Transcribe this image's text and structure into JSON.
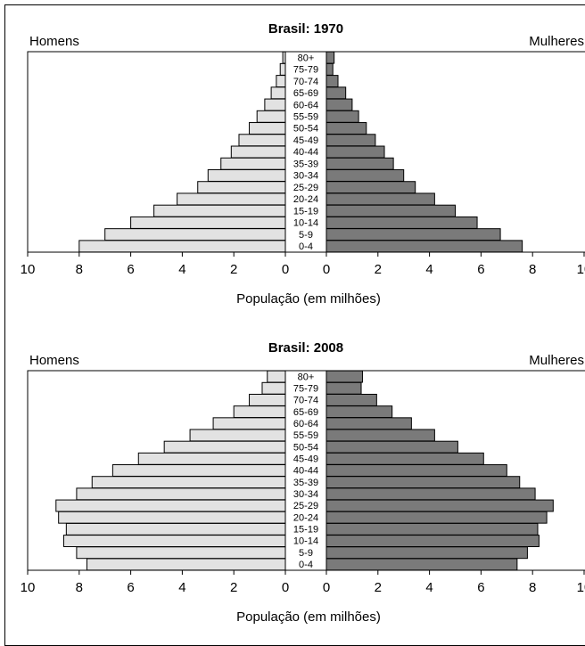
{
  "chart_data": [
    {
      "type": "bar",
      "title": "Brasil: 1970",
      "left_label": "Homens",
      "right_label": "Mulheres",
      "xlabel": "População (em milhões)",
      "categories": [
        "80+",
        "75-79",
        "70-74",
        "65-69",
        "60-64",
        "55-59",
        "50-54",
        "45-49",
        "40-44",
        "35-39",
        "30-34",
        "25-29",
        "20-24",
        "15-19",
        "10-14",
        "5-9",
        "0-4"
      ],
      "series": [
        {
          "name": "Homens",
          "values": [
            0.1,
            0.2,
            0.35,
            0.55,
            0.8,
            1.1,
            1.4,
            1.8,
            2.1,
            2.5,
            3.0,
            3.4,
            4.2,
            5.1,
            6.0,
            7.0,
            8.0
          ]
        },
        {
          "name": "Mulheres",
          "values": [
            0.3,
            0.25,
            0.45,
            0.75,
            1.0,
            1.25,
            1.55,
            1.9,
            2.25,
            2.6,
            3.0,
            3.45,
            4.2,
            5.0,
            5.85,
            6.75,
            7.6
          ]
        }
      ],
      "x_ticks": [
        "10",
        "8",
        "6",
        "4",
        "2",
        "0"
      ],
      "xlim": [
        0,
        10
      ]
    },
    {
      "type": "bar",
      "title": "Brasil: 2008",
      "left_label": "Homens",
      "right_label": "Mulheres",
      "xlabel": "População (em milhões)",
      "categories": [
        "80+",
        "75-79",
        "70-74",
        "65-69",
        "60-64",
        "55-59",
        "50-54",
        "45-49",
        "40-44",
        "35-39",
        "30-34",
        "25-29",
        "20-24",
        "15-19",
        "10-14",
        "5-9",
        "0-4"
      ],
      "series": [
        {
          "name": "Homens",
          "values": [
            0.7,
            0.9,
            1.4,
            2.0,
            2.8,
            3.7,
            4.7,
            5.7,
            6.7,
            7.5,
            8.1,
            8.9,
            8.8,
            8.5,
            8.6,
            8.1,
            7.7
          ]
        },
        {
          "name": "Mulheres",
          "values": [
            1.4,
            1.35,
            1.95,
            2.55,
            3.3,
            4.2,
            5.1,
            6.1,
            7.0,
            7.5,
            8.1,
            8.8,
            8.55,
            8.2,
            8.25,
            7.8,
            7.4
          ]
        }
      ],
      "x_ticks": [
        "10",
        "8",
        "6",
        "4",
        "2",
        "0"
      ],
      "xlim": [
        0,
        10
      ]
    }
  ],
  "colors": {
    "homens_fill": "#e2e2e2",
    "mulheres_fill": "#7a7a7a",
    "stroke": "#000000"
  }
}
